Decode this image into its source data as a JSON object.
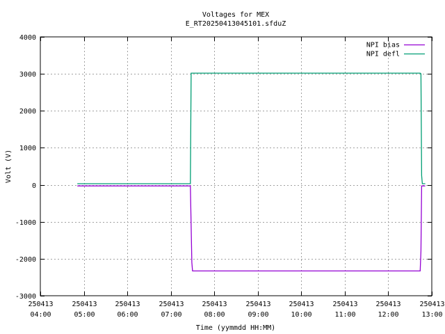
{
  "chart_data": {
    "type": "line",
    "title": "Voltages for MEX",
    "subtitle": "E_RT20250413045101.sfduZ",
    "xlabel": "Time (yymmdd HH:MM)",
    "ylabel": "Volt (V)",
    "xlim": [
      "2025-04-13 04:00",
      "2025-04-13 13:00"
    ],
    "ylim": [
      -3000,
      4000
    ],
    "grid": true,
    "legend_position": "top-right",
    "x_ticks": [
      {
        "t": "2025-04-13 04:00",
        "date": "250413",
        "time": "04:00"
      },
      {
        "t": "2025-04-13 05:00",
        "date": "250413",
        "time": "05:00"
      },
      {
        "t": "2025-04-13 06:00",
        "date": "250413",
        "time": "06:00"
      },
      {
        "t": "2025-04-13 07:00",
        "date": "250413",
        "time": "07:00"
      },
      {
        "t": "2025-04-13 08:00",
        "date": "250413",
        "time": "08:00"
      },
      {
        "t": "2025-04-13 09:00",
        "date": "250413",
        "time": "09:00"
      },
      {
        "t": "2025-04-13 10:00",
        "date": "250413",
        "time": "10:00"
      },
      {
        "t": "2025-04-13 11:00",
        "date": "250413",
        "time": "11:00"
      },
      {
        "t": "2025-04-13 12:00",
        "date": "250413",
        "time": "12:00"
      },
      {
        "t": "2025-04-13 13:00",
        "date": "250413",
        "time": "13:00"
      }
    ],
    "y_ticks": [
      {
        "value": -3000,
        "label": "-3000"
      },
      {
        "value": -2000,
        "label": "-2000"
      },
      {
        "value": -1000,
        "label": "-1000"
      },
      {
        "value": 0,
        "label": "0"
      },
      {
        "value": 1000,
        "label": "1000"
      },
      {
        "value": 2000,
        "label": "2000"
      },
      {
        "value": 3000,
        "label": "3000"
      },
      {
        "value": 4000,
        "label": "4000"
      }
    ],
    "series": [
      {
        "name": "NPI bias",
        "color": "#9400d3",
        "points": [
          {
            "t": "2025-04-13 04:51",
            "y": -30
          },
          {
            "t": "2025-04-13 07:27",
            "y": -30
          },
          {
            "t": "2025-04-13 07:29",
            "y": -2100
          },
          {
            "t": "2025-04-13 07:30",
            "y": -2330
          },
          {
            "t": "2025-04-13 12:44",
            "y": -2330
          },
          {
            "t": "2025-04-13 12:45",
            "y": -1800
          },
          {
            "t": "2025-04-13 12:46",
            "y": -30
          },
          {
            "t": "2025-04-13 12:51",
            "y": -30
          }
        ]
      },
      {
        "name": "NPI defl",
        "color": "#009e73",
        "points": [
          {
            "t": "2025-04-13 04:51",
            "y": 30
          },
          {
            "t": "2025-04-13 07:27",
            "y": 30
          },
          {
            "t": "2025-04-13 07:28",
            "y": 3020
          },
          {
            "t": "2025-04-13 12:44",
            "y": 3020
          },
          {
            "t": "2025-04-13 12:45",
            "y": 3000
          },
          {
            "t": "2025-04-13 12:46",
            "y": 250
          },
          {
            "t": "2025-04-13 12:47",
            "y": 30
          },
          {
            "t": "2025-04-13 12:51",
            "y": 30
          }
        ]
      }
    ]
  }
}
